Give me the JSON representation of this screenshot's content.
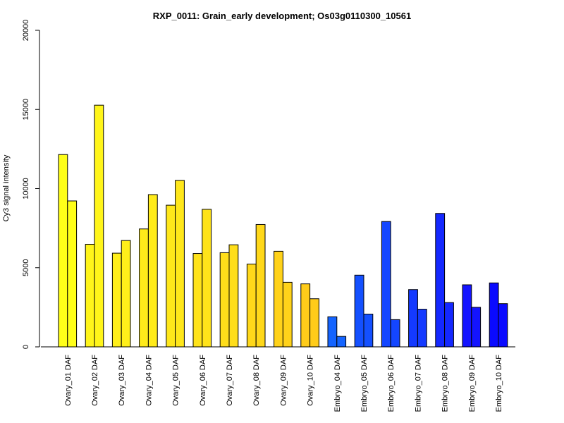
{
  "chart_data": {
    "type": "bar",
    "title": "RXP_0011: Grain_early development; Os03g0110300_10561",
    "xlabel": "",
    "ylabel": "Cy3 signal intensity",
    "ylim": [
      0,
      20000
    ],
    "yticks": [
      0,
      5000,
      10000,
      15000,
      20000
    ],
    "grid": false,
    "legend": "none",
    "categories": [
      "Ovary_01 DAF",
      "Ovary_02 DAF",
      "Ovary_03 DAF",
      "Ovary_04 DAF",
      "Ovary_05 DAF",
      "Ovary_06 DAF",
      "Ovary_07 DAF",
      "Ovary_08 DAF",
      "Ovary_09 DAF",
      "Ovary_10 DAF",
      "Embryo_04 DAF",
      "Embryo_05 DAF",
      "Embryo_06 DAF",
      "Embryo_07 DAF",
      "Embryo_08 DAF",
      "Embryo_09 DAF",
      "Embryo_10 DAF"
    ],
    "colors": [
      "#FFFF19",
      "#FFF51A",
      "#FFEF1A",
      "#FFEB1A",
      "#FFE71A",
      "#FFE31A",
      "#FFDE1A",
      "#FFD81A",
      "#FFD21A",
      "#FFCC1A",
      "#1464FF",
      "#1450FF",
      "#1446FF",
      "#143AFF",
      "#1428FF",
      "#1414FF",
      "#0A0AFF"
    ],
    "series": [
      {
        "values": [
          12150,
          6480,
          5920,
          7450,
          8950,
          5900,
          5950,
          5230,
          6040,
          3980,
          1900,
          4530,
          7920,
          3620,
          8430,
          3920,
          4040
        ]
      },
      {
        "values": [
          9220,
          15270,
          6720,
          9620,
          10520,
          8690,
          6450,
          7730,
          4080,
          3040,
          660,
          2070,
          1720,
          2380,
          2800,
          2500,
          2730
        ]
      }
    ]
  }
}
